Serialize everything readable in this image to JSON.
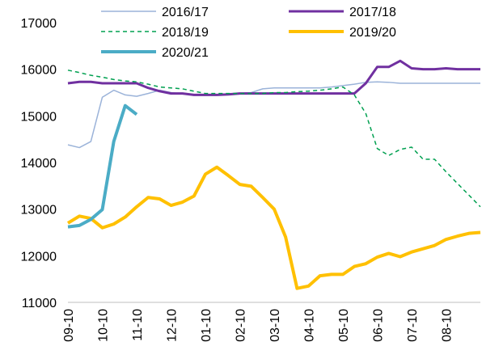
{
  "chart_data": {
    "type": "line",
    "categories": [
      "09-10",
      null,
      null,
      "10-10",
      null,
      null,
      "11-10",
      null,
      null,
      "12-10",
      null,
      null,
      "01-10",
      null,
      null,
      "02-10",
      null,
      null,
      "03-10",
      null,
      null,
      "04-10",
      null,
      null,
      "05-10",
      null,
      null,
      "06-10",
      null,
      null,
      "07-10",
      null,
      null,
      "08-10",
      null,
      null,
      null
    ],
    "series": [
      {
        "name": "2016/17",
        "color": "#9bb3d9",
        "width": 1.5,
        "dashed": false,
        "values": [
          14380,
          14320,
          14450,
          15400,
          15550,
          15450,
          15420,
          15480,
          15550,
          15500,
          15470,
          15460,
          15450,
          15450,
          15460,
          15480,
          15500,
          15580,
          15600,
          15600,
          15600,
          15600,
          15600,
          15620,
          15650,
          15680,
          15720,
          15730,
          15720,
          15700,
          15700,
          15700,
          15700,
          15700,
          15700,
          15700,
          15700
        ]
      },
      {
        "name": "2017/18",
        "color": "#7030a0",
        "width": 3,
        "dashed": false,
        "values": [
          15700,
          15730,
          15730,
          15700,
          15700,
          15700,
          15700,
          15600,
          15530,
          15480,
          15480,
          15450,
          15450,
          15450,
          15460,
          15480,
          15480,
          15480,
          15480,
          15480,
          15480,
          15480,
          15480,
          15480,
          15480,
          15480,
          15700,
          16050,
          16050,
          16180,
          16020,
          16000,
          16000,
          16020,
          16000,
          16000,
          16000
        ]
      },
      {
        "name": "2018/19",
        "color": "#00a050",
        "width": 1.5,
        "dashed": true,
        "values": [
          15980,
          15930,
          15870,
          15830,
          15780,
          15750,
          15730,
          15680,
          15620,
          15600,
          15580,
          15530,
          15480,
          15480,
          15480,
          15480,
          15480,
          15480,
          15500,
          15500,
          15520,
          15530,
          15550,
          15580,
          15620,
          15450,
          15050,
          14300,
          14150,
          14280,
          14330,
          14070,
          14070,
          13800,
          13550,
          13300,
          13050
        ]
      },
      {
        "name": "2019/20",
        "color": "#ffc000",
        "width": 4,
        "dashed": false,
        "values": [
          12700,
          12850,
          12800,
          12600,
          12680,
          12830,
          13050,
          13250,
          13220,
          13080,
          13150,
          13280,
          13750,
          13900,
          13720,
          13530,
          13490,
          13250,
          13000,
          12400,
          11300,
          11350,
          11570,
          11600,
          11600,
          11770,
          11830,
          11970,
          12050,
          11980,
          12080,
          12150,
          12220,
          12350,
          12420,
          12480,
          12500
        ]
      },
      {
        "name": "2020/21",
        "color": "#4bacc6",
        "width": 4,
        "dashed": false,
        "values": [
          12620,
          12650,
          12780,
          12990,
          14450,
          15220,
          15030,
          null,
          null,
          null,
          null,
          null,
          null,
          null,
          null,
          null,
          null,
          null,
          null,
          null,
          null,
          null,
          null,
          null,
          null,
          null,
          null,
          null,
          null,
          null,
          null,
          null,
          null,
          null,
          null,
          null,
          null
        ]
      }
    ],
    "ylim": [
      11000,
      17000
    ],
    "yticks": [
      11000,
      12000,
      13000,
      14000,
      15000,
      16000,
      17000
    ]
  }
}
